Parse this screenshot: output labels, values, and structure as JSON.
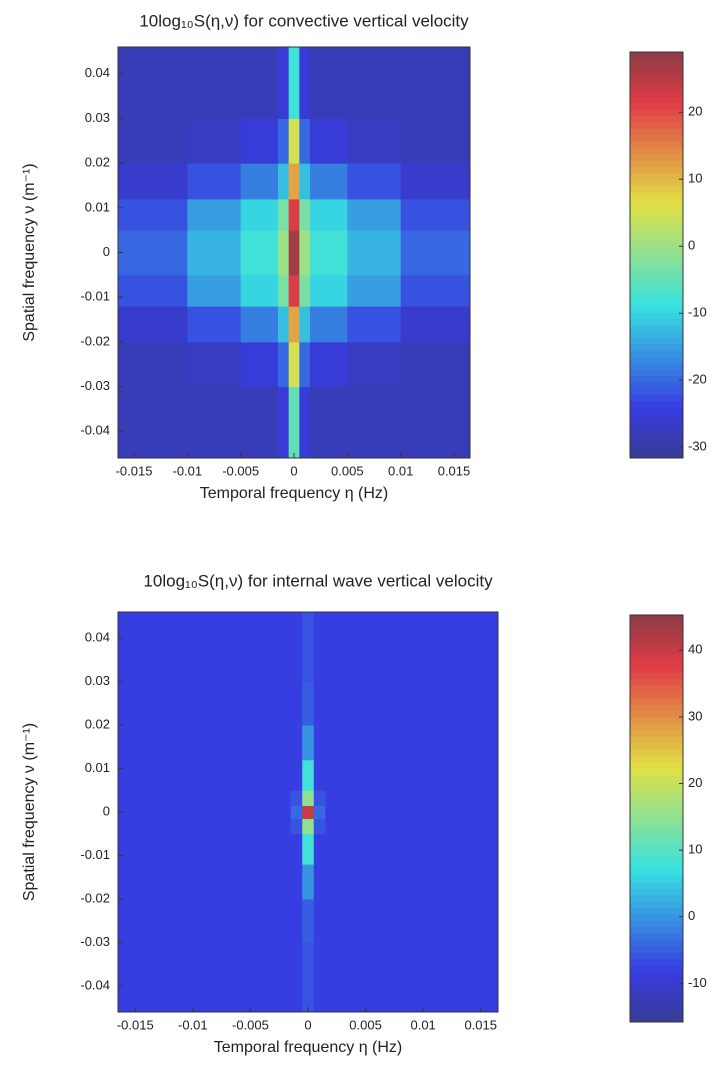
{
  "chart_data": [
    {
      "type": "heatmap",
      "title": "10log₁₀S(η,ν) for convective vertical velocity",
      "xlabel": "Temporal frequency η (Hz)",
      "ylabel": "Spatial frequency ν (m⁻¹)",
      "xlim": [
        -0.0165,
        0.0165
      ],
      "ylim": [
        -0.046,
        0.046
      ],
      "xticks": [
        -0.015,
        -0.01,
        -0.005,
        0,
        0.005,
        0.01,
        0.015
      ],
      "yticks": [
        -0.04,
        -0.03,
        -0.02,
        -0.01,
        0,
        0.01,
        0.02,
        0.03,
        0.04
      ],
      "xbins": [
        -0.0165,
        -0.01,
        -0.005,
        -0.0015,
        -0.0005,
        0.0005,
        0.0015,
        0.005,
        0.01,
        0.0165
      ],
      "ybins": [
        -0.046,
        -0.03,
        -0.02,
        -0.012,
        -0.005,
        0.005,
        0.012,
        0.02,
        0.03,
        0.046
      ],
      "z": [
        [
          -28,
          -28,
          -28,
          -25,
          -5,
          -25,
          -28,
          -28,
          -28
        ],
        [
          -28,
          -27,
          -25,
          -20,
          5,
          -20,
          -25,
          -27,
          -28
        ],
        [
          -26,
          -22,
          -18,
          -12,
          12,
          -12,
          -18,
          -22,
          -26
        ],
        [
          -22,
          -15,
          -10,
          -3,
          22,
          -3,
          -10,
          -15,
          -22
        ],
        [
          -20,
          -13,
          -8,
          0,
          27,
          0,
          -8,
          -13,
          -20
        ],
        [
          -22,
          -15,
          -10,
          -3,
          22,
          -3,
          -10,
          -15,
          -22
        ],
        [
          -26,
          -22,
          -18,
          -12,
          12,
          -12,
          -18,
          -22,
          -26
        ],
        [
          -28,
          -27,
          -25,
          -20,
          5,
          -20,
          -25,
          -27,
          -28
        ],
        [
          -28,
          -28,
          -28,
          -25,
          -8,
          -25,
          -28,
          -28,
          -28
        ]
      ],
      "colormap": "jet",
      "clim": [
        -31.6,
        29
      ],
      "cbar_ticks": [
        -30,
        -20,
        -10,
        0,
        10,
        20
      ]
    },
    {
      "type": "heatmap",
      "title": "10log₁₀S(η,ν) for internal wave vertical velocity",
      "xlabel": "Temporal frequency η (Hz)",
      "ylabel": "Spatial frequency ν (m⁻¹)",
      "xlim": [
        -0.0165,
        0.0165
      ],
      "ylim": [
        -0.046,
        0.046
      ],
      "xticks": [
        -0.015,
        -0.01,
        -0.005,
        0,
        0.005,
        0.01,
        0.015
      ],
      "yticks": [
        -0.04,
        -0.03,
        -0.02,
        -0.01,
        0,
        0.01,
        0.02,
        0.03,
        0.04
      ],
      "xbins": [
        -0.0165,
        -0.01,
        -0.005,
        -0.0015,
        -0.0005,
        0.0005,
        0.0015,
        0.005,
        0.01,
        0.0165
      ],
      "ybins": [
        -0.046,
        -0.03,
        -0.02,
        -0.012,
        -0.005,
        -0.0015,
        0.0015,
        0.005,
        0.012,
        0.02,
        0.03,
        0.046
      ],
      "z": [
        [
          -8,
          -8,
          -8,
          -8,
          -6,
          -8,
          -8,
          -8,
          -8
        ],
        [
          -8,
          -8,
          -8,
          -8,
          -5,
          -8,
          -8,
          -8,
          -8
        ],
        [
          -8,
          -8,
          -8,
          -8,
          0,
          -8,
          -8,
          -8,
          -8
        ],
        [
          -8,
          -8,
          -8,
          -8,
          8,
          -8,
          -8,
          -8,
          -8
        ],
        [
          -8,
          -8,
          -8,
          -6,
          15,
          -6,
          -8,
          -8,
          -8
        ],
        [
          -8,
          -8,
          -8,
          -4,
          40,
          -4,
          -8,
          -8,
          -8
        ],
        [
          -8,
          -8,
          -8,
          -6,
          15,
          -6,
          -8,
          -8,
          -8
        ],
        [
          -8,
          -8,
          -8,
          -8,
          8,
          -8,
          -8,
          -8,
          -8
        ],
        [
          -8,
          -8,
          -8,
          -8,
          0,
          -8,
          -8,
          -8,
          -8
        ],
        [
          -8,
          -8,
          -8,
          -8,
          -5,
          -8,
          -8,
          -8,
          -8
        ],
        [
          -8,
          -8,
          -8,
          -8,
          -6,
          -8,
          -8,
          -8,
          -8
        ]
      ],
      "colormap": "jet",
      "clim": [
        -15.8,
        45.3
      ],
      "cbar_ticks": [
        -10,
        0,
        10,
        20,
        30,
        40
      ]
    }
  ]
}
